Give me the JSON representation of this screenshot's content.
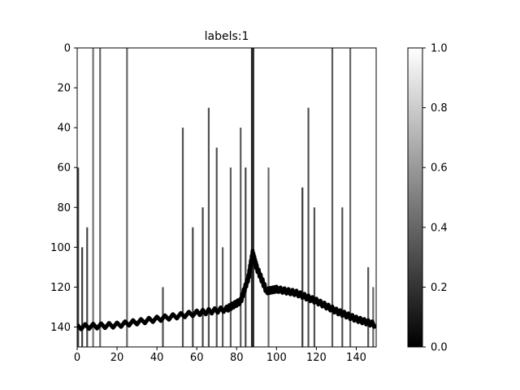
{
  "chart_data": {
    "type": "heatmap",
    "title": "labels:1",
    "xlabel": "",
    "ylabel": "",
    "x_ticks": [
      0,
      20,
      40,
      60,
      80,
      100,
      120,
      140
    ],
    "y_ticks": [
      0,
      20,
      40,
      60,
      80,
      100,
      120,
      140
    ],
    "xlim": [
      0,
      150
    ],
    "ylim": [
      150,
      0
    ],
    "colormap": "gray",
    "colorbar": {
      "min": 0.0,
      "max": 1.0,
      "ticks": [
        "0.0",
        "0.2",
        "0.4",
        "0.6",
        "0.8",
        "1.0"
      ]
    },
    "background_value": 1.0,
    "band": {
      "description_points": [
        {
          "x": 0,
          "y": 140
        },
        {
          "x": 20,
          "y": 139
        },
        {
          "x": 40,
          "y": 136
        },
        {
          "x": 60,
          "y": 133
        },
        {
          "x": 75,
          "y": 131
        },
        {
          "x": 82,
          "y": 127
        },
        {
          "x": 86,
          "y": 115
        },
        {
          "x": 88,
          "y": 103
        },
        {
          "x": 90,
          "y": 110
        },
        {
          "x": 95,
          "y": 122
        },
        {
          "x": 100,
          "y": 121
        },
        {
          "x": 110,
          "y": 123
        },
        {
          "x": 120,
          "y": 127
        },
        {
          "x": 130,
          "y": 132
        },
        {
          "x": 140,
          "y": 136
        },
        {
          "x": 150,
          "y": 139
        }
      ],
      "value": 0.0
    },
    "vertical_streaks": [
      {
        "x": 0.5,
        "from": 60,
        "to": 150,
        "value": 0.1
      },
      {
        "x": 2.5,
        "from": 100,
        "to": 150,
        "value": 0.1
      },
      {
        "x": 5,
        "from": 90,
        "to": 150,
        "value": 0.15
      },
      {
        "x": 8,
        "from": 0,
        "to": 150,
        "value": 0.35
      },
      {
        "x": 11.5,
        "from": 0,
        "to": 150,
        "value": 0.3
      },
      {
        "x": 25,
        "from": 0,
        "to": 150,
        "value": 0.3
      },
      {
        "x": 43,
        "from": 120,
        "to": 150,
        "value": 0.2
      },
      {
        "x": 53,
        "from": 40,
        "to": 150,
        "value": 0.2
      },
      {
        "x": 58,
        "from": 90,
        "to": 150,
        "value": 0.15
      },
      {
        "x": 63,
        "from": 80,
        "to": 150,
        "value": 0.15
      },
      {
        "x": 66,
        "from": 30,
        "to": 150,
        "value": 0.2
      },
      {
        "x": 70,
        "from": 50,
        "to": 150,
        "value": 0.2
      },
      {
        "x": 73,
        "from": 100,
        "to": 150,
        "value": 0.25
      },
      {
        "x": 77,
        "from": 60,
        "to": 150,
        "value": 0.25
      },
      {
        "x": 82,
        "from": 40,
        "to": 150,
        "value": 0.25
      },
      {
        "x": 84.5,
        "from": 60,
        "to": 150,
        "value": 0.15
      },
      {
        "x": 88,
        "from": 0,
        "to": 150,
        "value": 0.0
      },
      {
        "x": 96,
        "from": 60,
        "to": 150,
        "value": 0.3
      },
      {
        "x": 113,
        "from": 70,
        "to": 150,
        "value": 0.1
      },
      {
        "x": 116,
        "from": 30,
        "to": 150,
        "value": 0.2
      },
      {
        "x": 119,
        "from": 80,
        "to": 150,
        "value": 0.2
      },
      {
        "x": 128,
        "from": 0,
        "to": 150,
        "value": 0.25
      },
      {
        "x": 133,
        "from": 80,
        "to": 150,
        "value": 0.2
      },
      {
        "x": 137,
        "from": 0,
        "to": 150,
        "value": 0.3
      },
      {
        "x": 146,
        "from": 110,
        "to": 150,
        "value": 0.2
      },
      {
        "x": 148.5,
        "from": 120,
        "to": 150,
        "value": 0.3
      }
    ]
  }
}
